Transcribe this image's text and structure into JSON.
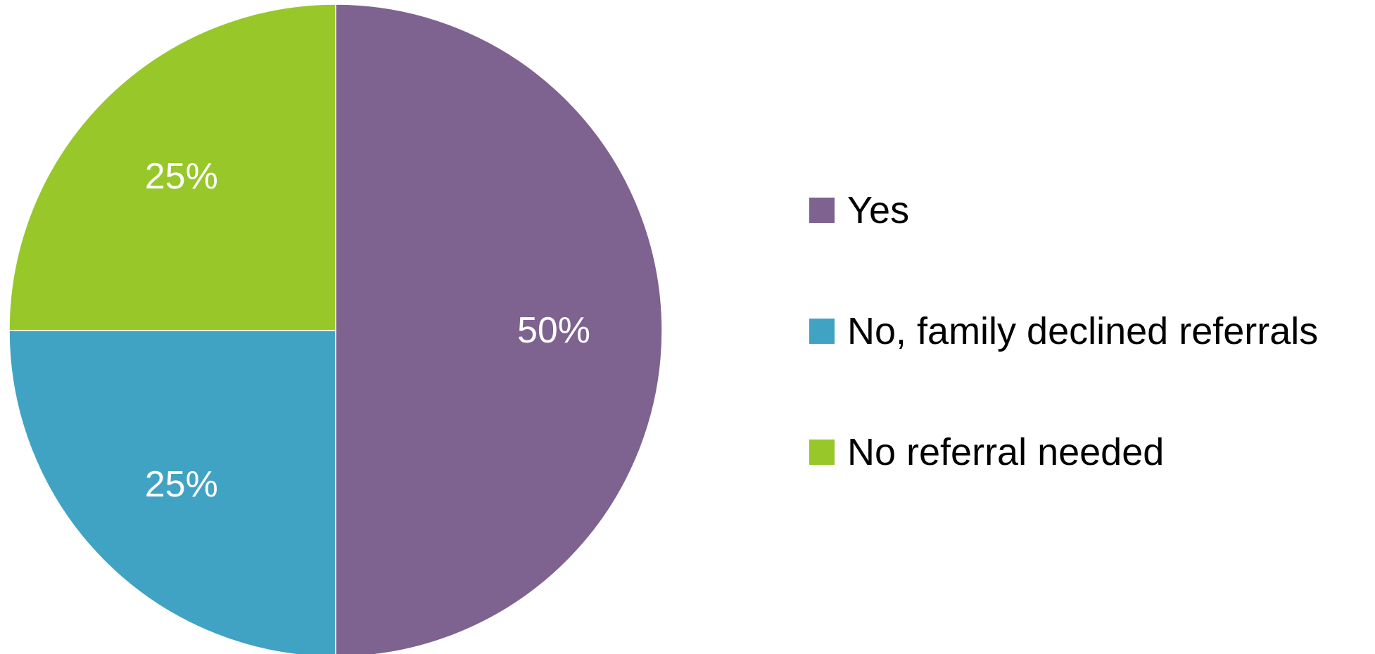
{
  "chart_data": {
    "type": "pie",
    "title": "",
    "start_angle_deg": 0,
    "direction": "clockwise",
    "legend_position": "right",
    "slices": [
      {
        "label": "Yes",
        "value": 50,
        "display": "50%",
        "color": "#7E6290"
      },
      {
        "label": "No, family declined referrals",
        "value": 25,
        "display": "25%",
        "color": "#41A3C4"
      },
      {
        "label": "No referral needed",
        "value": 25,
        "display": "25%",
        "color": "#97C728"
      }
    ]
  }
}
